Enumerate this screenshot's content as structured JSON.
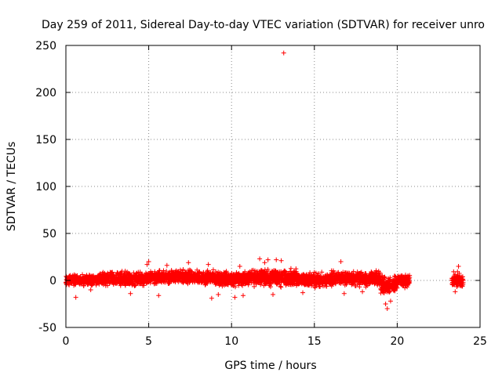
{
  "chart_data": {
    "type": "scatter",
    "title": "Day 259 of 2011, Sidereal Day-to-day VTEC variation (SDTVAR) for receiver unro",
    "xlabel": "GPS time / hours",
    "ylabel": "SDTVAR / TECUs",
    "xlim": [
      0,
      25
    ],
    "ylim": [
      -50,
      250
    ],
    "xticks": [
      0,
      5,
      10,
      15,
      20,
      25
    ],
    "yticks": [
      -50,
      0,
      50,
      100,
      150,
      200,
      250
    ],
    "grid": true,
    "marker": "+",
    "color": "#ff0000",
    "series": [
      {
        "name": "SDTVAR",
        "segments": [
          {
            "x_start": 0.0,
            "x_end": 2.0,
            "center": 0.5,
            "spread": 3
          },
          {
            "x_start": 2.0,
            "x_end": 5.0,
            "center": 1.5,
            "spread": 4
          },
          {
            "x_start": 5.0,
            "x_end": 9.0,
            "center": 3.5,
            "spread": 4
          },
          {
            "x_start": 9.0,
            "x_end": 11.0,
            "center": 1.5,
            "spread": 4
          },
          {
            "x_start": 11.0,
            "x_end": 14.0,
            "center": 3.0,
            "spread": 5
          },
          {
            "x_start": 14.0,
            "x_end": 16.0,
            "center": 0.5,
            "spread": 4
          },
          {
            "x_start": 16.0,
            "x_end": 19.0,
            "center": 2.0,
            "spread": 4
          },
          {
            "x_start": 19.0,
            "x_end": 20.0,
            "center": -5.0,
            "spread": 5
          },
          {
            "x_start": 20.0,
            "x_end": 20.75,
            "center": 0.0,
            "spread": 4
          },
          {
            "x_start": 23.3,
            "x_end": 24.0,
            "center": 0.0,
            "spread": 4
          }
        ],
        "points": [
          [
            13.15,
            242
          ],
          [
            12.2,
            22
          ],
          [
            11.7,
            23
          ],
          [
            12.7,
            22
          ],
          [
            5.0,
            20
          ],
          [
            7.4,
            19
          ],
          [
            16.6,
            20
          ],
          [
            23.7,
            15
          ],
          [
            8.6,
            17
          ],
          [
            6.1,
            16
          ],
          [
            10.5,
            15
          ],
          [
            12.0,
            19
          ],
          [
            13.0,
            21
          ],
          [
            4.9,
            17
          ],
          [
            19.4,
            -30
          ],
          [
            19.3,
            -25
          ],
          [
            19.6,
            -22
          ],
          [
            0.6,
            -18
          ],
          [
            8.8,
            -19
          ],
          [
            10.2,
            -18
          ],
          [
            10.7,
            -16
          ],
          [
            12.5,
            -15
          ],
          [
            16.8,
            -14
          ],
          [
            23.5,
            -12
          ],
          [
            9.2,
            -15
          ],
          [
            3.9,
            -14
          ],
          [
            5.6,
            -16
          ],
          [
            14.3,
            -13
          ],
          [
            17.9,
            -12
          ],
          [
            1.5,
            -10
          ]
        ]
      }
    ]
  }
}
